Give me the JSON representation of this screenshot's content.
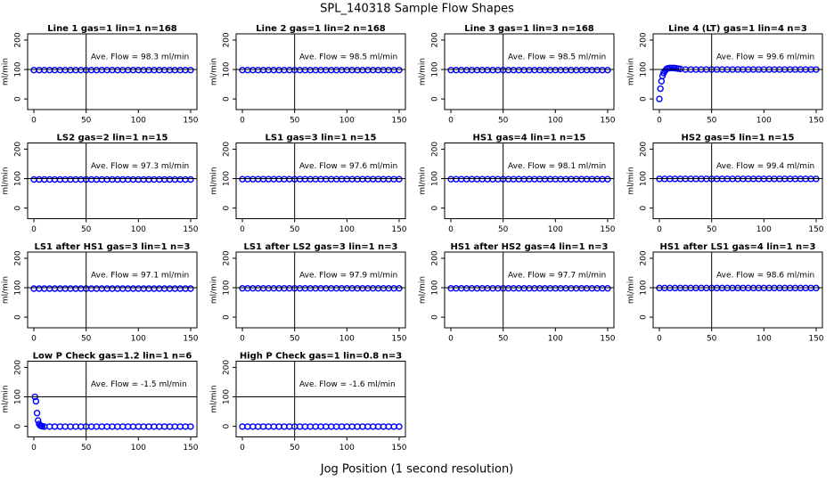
{
  "title": "SPL_140318  Sample Flow Shapes",
  "xlabel": "Jog Position (1 second resolution)",
  "chart_data": [
    {
      "type": "scatter",
      "title": "Line 1 gas=1 lin=1 n=168",
      "annotation": "Ave. Flow = 98.3  ml/min",
      "ylabel": "ml/min",
      "color": "#0000ff",
      "xlim": [
        -6,
        156
      ],
      "ylim": [
        -36,
        221
      ],
      "xticks": [
        0,
        50,
        100,
        150
      ],
      "yticks": [
        0,
        100,
        200
      ],
      "hline": 100,
      "vline": 50,
      "x": [
        0,
        5,
        10,
        15,
        20,
        25,
        30,
        35,
        40,
        45,
        50,
        55,
        60,
        65,
        70,
        75,
        80,
        85,
        90,
        95,
        100,
        105,
        110,
        115,
        120,
        125,
        130,
        135,
        140,
        145,
        150
      ],
      "values": [
        98,
        98,
        98,
        98,
        98,
        98,
        98,
        98,
        98,
        98,
        98,
        98,
        98,
        98,
        98,
        98,
        98,
        98,
        98,
        98,
        98,
        98,
        98,
        98,
        98,
        98,
        98,
        98,
        98,
        98,
        98
      ]
    },
    {
      "type": "scatter",
      "title": "Line 2 gas=1 lin=2 n=168",
      "annotation": "Ave. Flow = 98.5  ml/min",
      "ylabel": "ml/min",
      "color": "#0000ff",
      "xlim": [
        -6,
        156
      ],
      "ylim": [
        -36,
        221
      ],
      "xticks": [
        0,
        50,
        100,
        150
      ],
      "yticks": [
        0,
        100,
        200
      ],
      "hline": 100,
      "vline": 50,
      "x": [
        0,
        5,
        10,
        15,
        20,
        25,
        30,
        35,
        40,
        45,
        50,
        55,
        60,
        65,
        70,
        75,
        80,
        85,
        90,
        95,
        100,
        105,
        110,
        115,
        120,
        125,
        130,
        135,
        140,
        145,
        150
      ],
      "values": [
        98,
        98,
        98,
        98,
        98,
        98,
        98,
        98,
        98,
        98,
        98,
        98,
        98,
        98,
        98,
        98,
        98,
        98,
        98,
        98,
        98,
        98,
        98,
        98,
        98,
        98,
        98,
        98,
        98,
        98,
        98
      ]
    },
    {
      "type": "scatter",
      "title": "Line 3 gas=1 lin=3 n=168",
      "annotation": "Ave. Flow = 98.5  ml/min",
      "ylabel": "ml/min",
      "color": "#0000ff",
      "xlim": [
        -6,
        156
      ],
      "ylim": [
        -36,
        221
      ],
      "xticks": [
        0,
        50,
        100,
        150
      ],
      "yticks": [
        0,
        100,
        200
      ],
      "hline": 100,
      "vline": 50,
      "x": [
        0,
        5,
        10,
        15,
        20,
        25,
        30,
        35,
        40,
        45,
        50,
        55,
        60,
        65,
        70,
        75,
        80,
        85,
        90,
        95,
        100,
        105,
        110,
        115,
        120,
        125,
        130,
        135,
        140,
        145,
        150
      ],
      "values": [
        98,
        98,
        98,
        98,
        98,
        98,
        98,
        98,
        98,
        98,
        98,
        98,
        98,
        98,
        98,
        98,
        98,
        98,
        98,
        98,
        98,
        98,
        98,
        98,
        98,
        98,
        98,
        98,
        98,
        98,
        98
      ]
    },
    {
      "type": "scatter",
      "title": "Line 4 (LT) gas=1 lin=4 n=3",
      "annotation": "Ave. Flow = 99.6  ml/min",
      "ylabel": "ml/min",
      "color": "#0000ff",
      "xlim": [
        -6,
        156
      ],
      "ylim": [
        -36,
        221
      ],
      "xticks": [
        0,
        50,
        100,
        150
      ],
      "yticks": [
        0,
        100,
        200
      ],
      "hline": 100,
      "vline": 50,
      "x": [
        0,
        1,
        2,
        3,
        4,
        5,
        6,
        7,
        8,
        10,
        12,
        14,
        16,
        18,
        20,
        25,
        30,
        35,
        40,
        45,
        50,
        55,
        60,
        65,
        70,
        75,
        80,
        85,
        90,
        95,
        100,
        105,
        110,
        115,
        120,
        125,
        130,
        135,
        140,
        145,
        150
      ],
      "values": [
        0,
        35,
        60,
        78,
        88,
        94,
        98,
        102,
        104,
        105,
        105,
        105,
        104,
        103,
        102,
        100,
        100,
        100,
        100,
        100,
        100,
        100,
        100,
        100,
        100,
        100,
        100,
        100,
        100,
        100,
        100,
        100,
        100,
        100,
        100,
        100,
        100,
        100,
        100,
        100,
        100
      ]
    },
    {
      "type": "scatter",
      "title": "LS2 gas=2 lin=1 n=15",
      "annotation": "Ave. Flow = 97.3  ml/min",
      "ylabel": "ml/min",
      "color": "#0000ff",
      "xlim": [
        -6,
        156
      ],
      "ylim": [
        -36,
        221
      ],
      "xticks": [
        0,
        50,
        100,
        150
      ],
      "yticks": [
        0,
        100,
        200
      ],
      "hline": 100,
      "vline": 50,
      "x": [
        0,
        5,
        10,
        15,
        20,
        25,
        30,
        35,
        40,
        45,
        50,
        55,
        60,
        65,
        70,
        75,
        80,
        85,
        90,
        95,
        100,
        105,
        110,
        115,
        120,
        125,
        130,
        135,
        140,
        145,
        150
      ],
      "values": [
        97,
        97,
        97,
        97,
        97,
        97,
        97,
        97,
        97,
        97,
        97,
        97,
        97,
        97,
        97,
        97,
        97,
        97,
        97,
        97,
        97,
        97,
        97,
        97,
        97,
        97,
        97,
        97,
        97,
        97,
        97
      ]
    },
    {
      "type": "scatter",
      "title": "LS1 gas=3 lin=1 n=15",
      "annotation": "Ave. Flow = 97.6  ml/min",
      "ylabel": "ml/min",
      "color": "#0000ff",
      "xlim": [
        -6,
        156
      ],
      "ylim": [
        -36,
        221
      ],
      "xticks": [
        0,
        50,
        100,
        150
      ],
      "yticks": [
        0,
        100,
        200
      ],
      "hline": 100,
      "vline": 50,
      "x": [
        0,
        5,
        10,
        15,
        20,
        25,
        30,
        35,
        40,
        45,
        50,
        55,
        60,
        65,
        70,
        75,
        80,
        85,
        90,
        95,
        100,
        105,
        110,
        115,
        120,
        125,
        130,
        135,
        140,
        145,
        150
      ],
      "values": [
        98,
        98,
        98,
        98,
        98,
        98,
        98,
        98,
        98,
        98,
        98,
        98,
        98,
        98,
        98,
        98,
        98,
        98,
        98,
        98,
        98,
        98,
        98,
        98,
        98,
        98,
        98,
        98,
        98,
        98,
        98
      ]
    },
    {
      "type": "scatter",
      "title": "HS1 gas=4 lin=1 n=15",
      "annotation": "Ave. Flow = 98.1  ml/min",
      "ylabel": "ml/min",
      "color": "#0000ff",
      "xlim": [
        -6,
        156
      ],
      "ylim": [
        -36,
        221
      ],
      "xticks": [
        0,
        50,
        100,
        150
      ],
      "yticks": [
        0,
        100,
        200
      ],
      "hline": 100,
      "vline": 50,
      "x": [
        0,
        5,
        10,
        15,
        20,
        25,
        30,
        35,
        40,
        45,
        50,
        55,
        60,
        65,
        70,
        75,
        80,
        85,
        90,
        95,
        100,
        105,
        110,
        115,
        120,
        125,
        130,
        135,
        140,
        145,
        150
      ],
      "values": [
        98,
        98,
        98,
        98,
        98,
        98,
        98,
        98,
        98,
        98,
        98,
        98,
        98,
        98,
        98,
        98,
        98,
        98,
        98,
        98,
        98,
        98,
        98,
        98,
        98,
        98,
        98,
        98,
        98,
        98,
        98
      ]
    },
    {
      "type": "scatter",
      "title": "HS2 gas=5 lin=1 n=15",
      "annotation": "Ave. Flow = 99.4  ml/min",
      "ylabel": "ml/min",
      "color": "#0000ff",
      "xlim": [
        -6,
        156
      ],
      "ylim": [
        -36,
        221
      ],
      "xticks": [
        0,
        50,
        100,
        150
      ],
      "yticks": [
        0,
        100,
        200
      ],
      "hline": 100,
      "vline": 50,
      "x": [
        0,
        5,
        10,
        15,
        20,
        25,
        30,
        35,
        40,
        45,
        50,
        55,
        60,
        65,
        70,
        75,
        80,
        85,
        90,
        95,
        100,
        105,
        110,
        115,
        120,
        125,
        130,
        135,
        140,
        145,
        150
      ],
      "values": [
        99,
        99,
        99,
        99,
        99,
        99,
        99,
        99,
        99,
        99,
        99,
        99,
        99,
        99,
        99,
        99,
        99,
        99,
        99,
        99,
        99,
        99,
        99,
        99,
        99,
        99,
        99,
        99,
        99,
        99,
        99
      ]
    },
    {
      "type": "scatter",
      "title": "LS1 after HS1 gas=3 lin=1 n=3",
      "annotation": "Ave. Flow = 97.1  ml/min",
      "ylabel": "ml/min",
      "color": "#0000ff",
      "xlim": [
        -6,
        156
      ],
      "ylim": [
        -36,
        221
      ],
      "xticks": [
        0,
        50,
        100,
        150
      ],
      "yticks": [
        0,
        100,
        200
      ],
      "hline": 100,
      "vline": 50,
      "x": [
        0,
        5,
        10,
        15,
        20,
        25,
        30,
        35,
        40,
        45,
        50,
        55,
        60,
        65,
        70,
        75,
        80,
        85,
        90,
        95,
        100,
        105,
        110,
        115,
        120,
        125,
        130,
        135,
        140,
        145,
        150
      ],
      "values": [
        97,
        97,
        97,
        97,
        97,
        97,
        97,
        97,
        97,
        97,
        97,
        97,
        97,
        97,
        97,
        97,
        97,
        97,
        97,
        97,
        97,
        97,
        97,
        97,
        97,
        97,
        97,
        97,
        97,
        97,
        97
      ]
    },
    {
      "type": "scatter",
      "title": "LS1 after LS2 gas=3 lin=1 n=3",
      "annotation": "Ave. Flow = 97.9  ml/min",
      "ylabel": "ml/min",
      "color": "#0000ff",
      "xlim": [
        -6,
        156
      ],
      "ylim": [
        -36,
        221
      ],
      "xticks": [
        0,
        50,
        100,
        150
      ],
      "yticks": [
        0,
        100,
        200
      ],
      "hline": 100,
      "vline": 50,
      "x": [
        0,
        5,
        10,
        15,
        20,
        25,
        30,
        35,
        40,
        45,
        50,
        55,
        60,
        65,
        70,
        75,
        80,
        85,
        90,
        95,
        100,
        105,
        110,
        115,
        120,
        125,
        130,
        135,
        140,
        145,
        150
      ],
      "values": [
        98,
        98,
        98,
        98,
        98,
        98,
        98,
        98,
        98,
        98,
        98,
        98,
        98,
        98,
        98,
        98,
        98,
        98,
        98,
        98,
        98,
        98,
        98,
        98,
        98,
        98,
        98,
        98,
        98,
        98,
        98
      ]
    },
    {
      "type": "scatter",
      "title": "HS1 after HS2 gas=4 lin=1 n=3",
      "annotation": "Ave. Flow = 97.7  ml/min",
      "ylabel": "ml/min",
      "color": "#0000ff",
      "xlim": [
        -6,
        156
      ],
      "ylim": [
        -36,
        221
      ],
      "xticks": [
        0,
        50,
        100,
        150
      ],
      "yticks": [
        0,
        100,
        200
      ],
      "hline": 100,
      "vline": 50,
      "x": [
        0,
        5,
        10,
        15,
        20,
        25,
        30,
        35,
        40,
        45,
        50,
        55,
        60,
        65,
        70,
        75,
        80,
        85,
        90,
        95,
        100,
        105,
        110,
        115,
        120,
        125,
        130,
        135,
        140,
        145,
        150
      ],
      "values": [
        98,
        98,
        98,
        98,
        98,
        98,
        98,
        98,
        98,
        98,
        98,
        98,
        98,
        98,
        98,
        98,
        98,
        98,
        98,
        98,
        98,
        98,
        98,
        98,
        98,
        98,
        98,
        98,
        98,
        98,
        98
      ]
    },
    {
      "type": "scatter",
      "title": "HS1 after LS1 gas=4 lin=1 n=3",
      "annotation": "Ave. Flow = 98.6  ml/min",
      "ylabel": "ml/min",
      "color": "#0000ff",
      "xlim": [
        -6,
        156
      ],
      "ylim": [
        -36,
        221
      ],
      "xticks": [
        0,
        50,
        100,
        150
      ],
      "yticks": [
        0,
        100,
        200
      ],
      "hline": 100,
      "vline": 50,
      "x": [
        0,
        5,
        10,
        15,
        20,
        25,
        30,
        35,
        40,
        45,
        50,
        55,
        60,
        65,
        70,
        75,
        80,
        85,
        90,
        95,
        100,
        105,
        110,
        115,
        120,
        125,
        130,
        135,
        140,
        145,
        150
      ],
      "values": [
        99,
        99,
        99,
        99,
        99,
        99,
        99,
        99,
        99,
        99,
        99,
        99,
        99,
        99,
        99,
        99,
        99,
        99,
        99,
        99,
        99,
        99,
        99,
        99,
        99,
        99,
        99,
        99,
        99,
        99,
        99
      ]
    },
    {
      "type": "scatter",
      "title": "Low P Check gas=1.2 lin=1 n=6",
      "annotation": "Ave. Flow = -1.5  ml/min",
      "ylabel": "ml/min",
      "color": "#0000ff",
      "xlim": [
        -6,
        156
      ],
      "ylim": [
        -36,
        221
      ],
      "xticks": [
        0,
        50,
        100,
        150
      ],
      "yticks": [
        0,
        100,
        200
      ],
      "hline": 100,
      "vline": 50,
      "x": [
        1,
        2,
        3,
        4,
        5,
        6,
        7,
        8,
        10,
        15,
        20,
        25,
        30,
        35,
        40,
        45,
        50,
        55,
        60,
        65,
        70,
        75,
        80,
        85,
        90,
        95,
        100,
        105,
        110,
        115,
        120,
        125,
        130,
        135,
        140,
        145,
        150
      ],
      "values": [
        100,
        85,
        45,
        20,
        8,
        3,
        1,
        0,
        -1,
        -1,
        -1,
        -1,
        -1,
        -1,
        -1,
        -1,
        -1,
        -1,
        -1,
        -1,
        -1,
        -1,
        -1,
        -1,
        -1,
        -1,
        -1,
        -1,
        -1,
        -1,
        -1,
        -1,
        -1,
        -1,
        -1,
        -1,
        -1
      ]
    },
    {
      "type": "scatter",
      "title": "High P Check gas=1 lin=0.8 n=3",
      "annotation": "Ave. Flow = -1.6  ml/min",
      "ylabel": "ml/min",
      "color": "#0000ff",
      "xlim": [
        -6,
        156
      ],
      "ylim": [
        -36,
        221
      ],
      "xticks": [
        0,
        50,
        100,
        150
      ],
      "yticks": [
        0,
        100,
        200
      ],
      "hline": 100,
      "vline": 50,
      "x": [
        0,
        5,
        10,
        15,
        20,
        25,
        30,
        35,
        40,
        45,
        50,
        55,
        60,
        65,
        70,
        75,
        80,
        85,
        90,
        95,
        100,
        105,
        110,
        115,
        120,
        125,
        130,
        135,
        140,
        145,
        150
      ],
      "values": [
        -1,
        -1,
        -1,
        -1,
        -1,
        -1,
        -1,
        -1,
        -1,
        -1,
        -1,
        -1,
        -1,
        -1,
        -1,
        -1,
        -1,
        -1,
        -1,
        -1,
        -1,
        -1,
        -1,
        -1,
        -1,
        -1,
        -1,
        -1,
        -1,
        -1,
        -1
      ]
    }
  ]
}
